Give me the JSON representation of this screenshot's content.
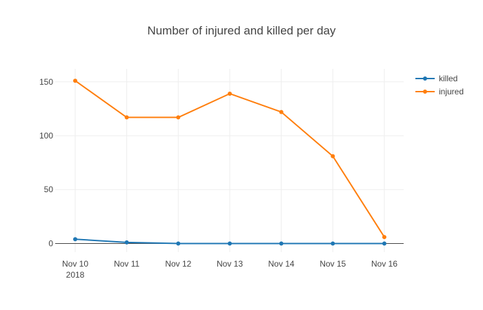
{
  "chart_data": {
    "type": "line",
    "title": "Number of injured and killed per day",
    "xlabel": "",
    "ylabel": "",
    "categories": [
      "Nov 10",
      "Nov 11",
      "Nov 12",
      "Nov 13",
      "Nov 14",
      "Nov 15",
      "Nov 16"
    ],
    "x_year_label": "2018",
    "yticks": [
      0,
      50,
      100,
      150
    ],
    "ylim": [
      -8,
      162
    ],
    "grid": true,
    "legend_position": "top-right",
    "series": [
      {
        "name": "killed",
        "color": "#1f77b4",
        "values": [
          4,
          1,
          0,
          0,
          0,
          0,
          0
        ]
      },
      {
        "name": "injured",
        "color": "#ff7f0e",
        "values": [
          151,
          117,
          117,
          139,
          122,
          81,
          6
        ]
      }
    ]
  }
}
